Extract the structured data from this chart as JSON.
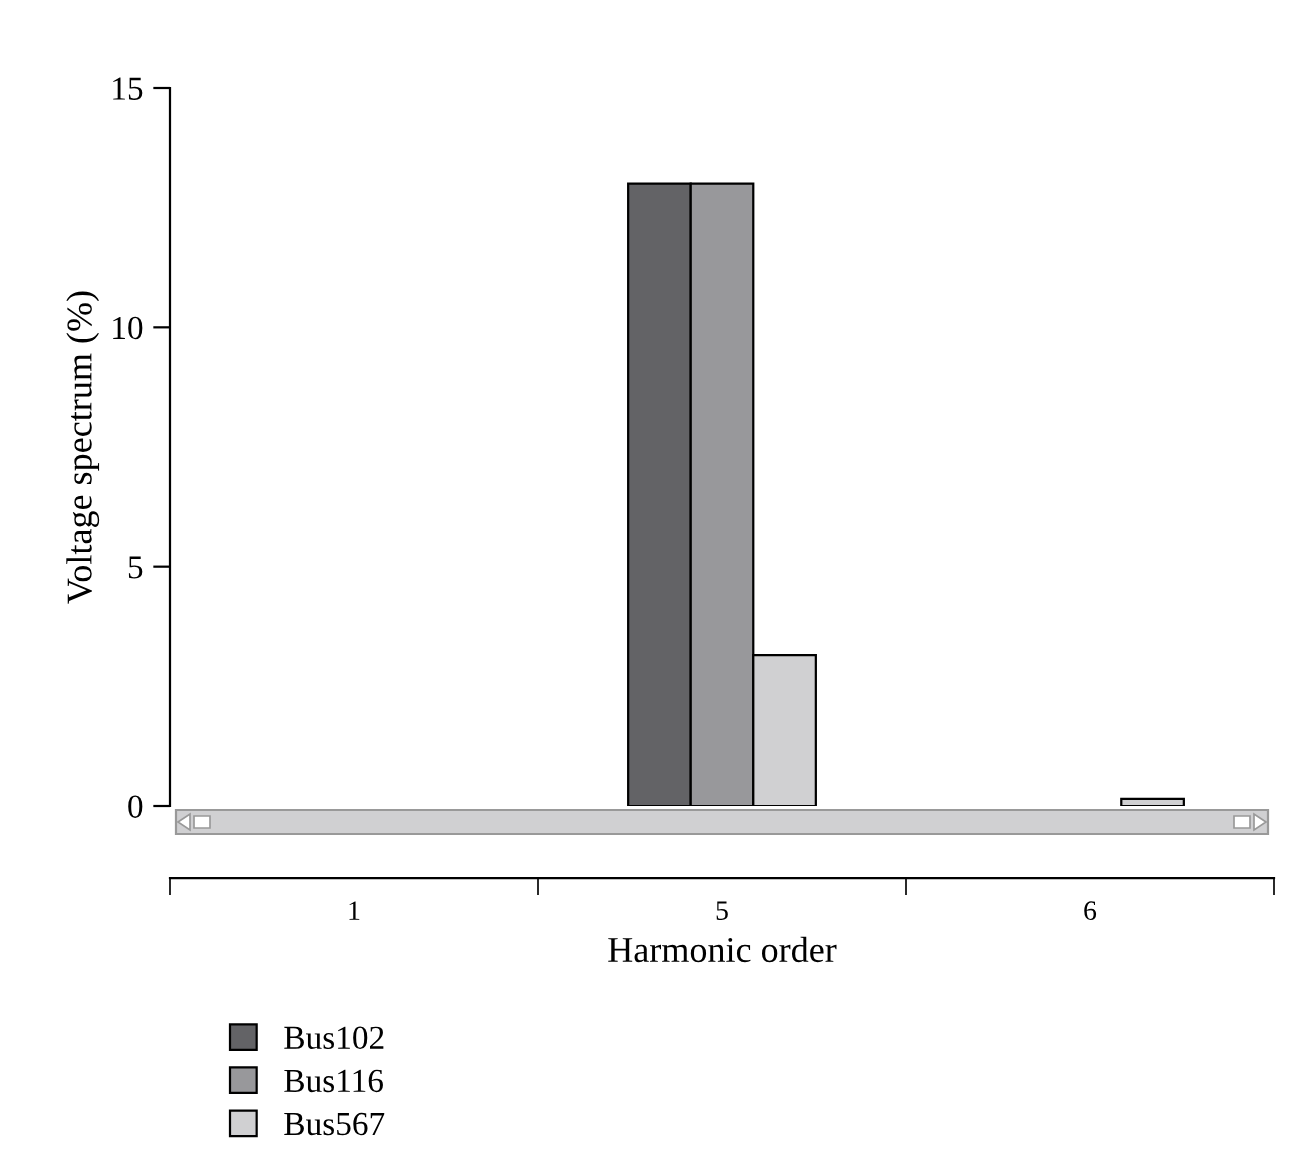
{
  "chart_data": {
    "type": "bar",
    "xlabel": "Harmonic order",
    "ylabel": "Voltage spectrum (%)",
    "categories": [
      "1",
      "5",
      "6"
    ],
    "series": [
      {
        "name": "Bus102",
        "color": "#636366",
        "values": [
          null,
          13,
          null
        ]
      },
      {
        "name": "Bus116",
        "color": "#98989b",
        "values": [
          null,
          13,
          null
        ]
      },
      {
        "name": "Bus567",
        "color": "#d0d0d2",
        "values": [
          null,
          3.15,
          0.15
        ]
      }
    ],
    "ylim": [
      0,
      15
    ],
    "yticks": [
      0,
      5,
      10,
      15
    ],
    "grid": false,
    "legend": "bottom left"
  }
}
